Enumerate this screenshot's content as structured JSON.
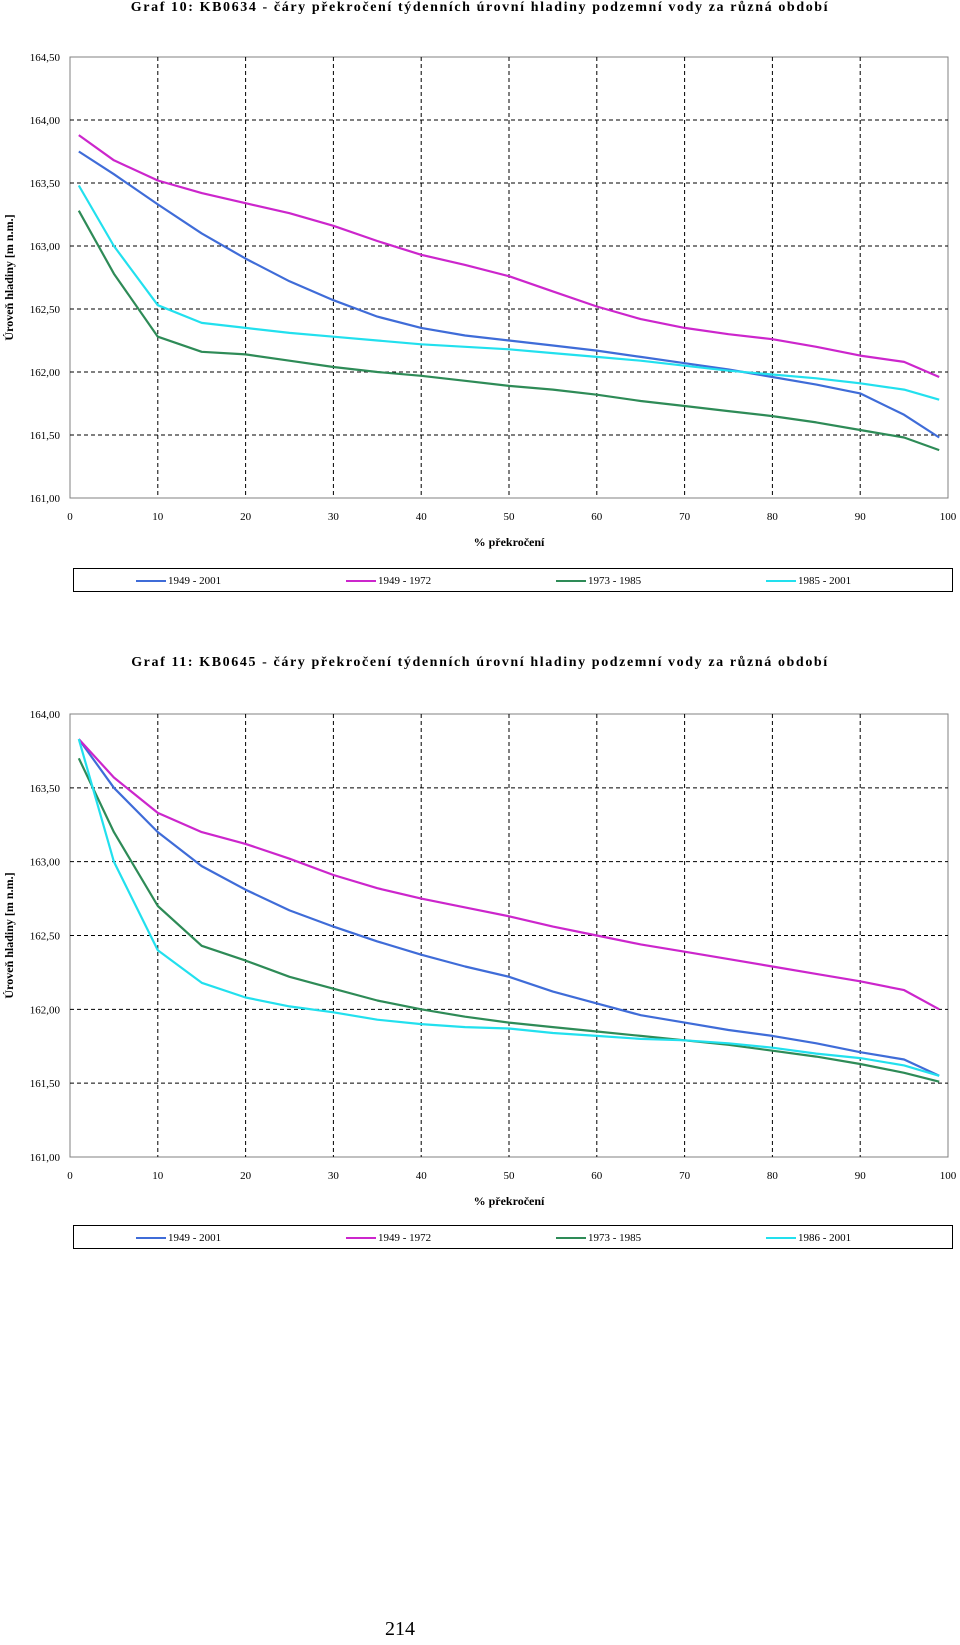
{
  "page_number": "214",
  "chart_data": [
    {
      "type": "line",
      "title": "Graf 10: KB0634 - čáry překročení týdenních úrovní hladiny podzemní vody za různá období",
      "xlabel": "% překročení",
      "ylabel": "Úroveň hladiny [m n.m.]",
      "xlim": [
        0,
        100
      ],
      "ylim": [
        161.0,
        164.5
      ],
      "x_ticks": [
        "0",
        "10",
        "20",
        "30",
        "40",
        "50",
        "60",
        "70",
        "80",
        "90",
        "100"
      ],
      "y_ticks": [
        "161,00",
        "161,50",
        "162,00",
        "162,50",
        "163,00",
        "163,50",
        "164,00",
        "164,50"
      ],
      "grid": true,
      "legend_position": "bottom",
      "x": [
        1,
        5,
        10,
        15,
        20,
        25,
        30,
        35,
        40,
        45,
        50,
        55,
        60,
        65,
        70,
        75,
        80,
        85,
        90,
        95,
        99
      ],
      "series": [
        {
          "name": "1949 - 2001",
          "color": "#3F6CD8",
          "values": [
            163.75,
            163.57,
            163.33,
            163.1,
            162.9,
            162.72,
            162.57,
            162.44,
            162.35,
            162.29,
            162.25,
            162.21,
            162.17,
            162.12,
            162.07,
            162.02,
            161.96,
            161.9,
            161.83,
            161.66,
            161.48
          ]
        },
        {
          "name": "1949 - 1972",
          "color": "#CC26CC",
          "values": [
            163.88,
            163.68,
            163.52,
            163.42,
            163.34,
            163.26,
            163.16,
            163.04,
            162.93,
            162.85,
            162.76,
            162.64,
            162.52,
            162.42,
            162.35,
            162.3,
            162.26,
            162.2,
            162.13,
            162.08,
            161.96
          ]
        },
        {
          "name": "1973 - 1985",
          "color": "#2E8B57",
          "values": [
            163.28,
            162.78,
            162.28,
            162.16,
            162.14,
            162.09,
            162.04,
            162.0,
            161.97,
            161.93,
            161.89,
            161.86,
            161.82,
            161.77,
            161.73,
            161.69,
            161.65,
            161.6,
            161.54,
            161.48,
            161.38
          ]
        },
        {
          "name": "1985 - 2001",
          "color": "#22E0EE",
          "values": [
            163.48,
            163.0,
            162.53,
            162.39,
            162.35,
            162.31,
            162.28,
            162.25,
            162.22,
            162.2,
            162.18,
            162.15,
            162.12,
            162.09,
            162.05,
            162.01,
            161.98,
            161.95,
            161.91,
            161.86,
            161.78
          ]
        }
      ]
    },
    {
      "type": "line",
      "title": "Graf 11: KB0645 - čáry překročení týdenních úrovní hladiny podzemní vody za různá období",
      "xlabel": "% překročení",
      "ylabel": "Úroveň hladiny [m n.m.]",
      "xlim": [
        0,
        100
      ],
      "ylim": [
        161.0,
        164.0
      ],
      "x_ticks": [
        "0",
        "10",
        "20",
        "30",
        "40",
        "50",
        "60",
        "70",
        "80",
        "90",
        "100"
      ],
      "y_ticks": [
        "161,00",
        "161,50",
        "162,00",
        "162,50",
        "163,00",
        "163,50",
        "164,00"
      ],
      "grid": true,
      "legend_position": "bottom",
      "x": [
        1,
        5,
        10,
        15,
        20,
        25,
        30,
        35,
        40,
        45,
        50,
        55,
        60,
        65,
        70,
        75,
        80,
        85,
        90,
        95,
        99
      ],
      "series": [
        {
          "name": "1949 - 2001",
          "color": "#3F6CD8",
          "values": [
            163.83,
            163.5,
            163.2,
            162.97,
            162.81,
            162.67,
            162.56,
            162.46,
            162.37,
            162.29,
            162.22,
            162.12,
            162.04,
            161.96,
            161.91,
            161.86,
            161.82,
            161.77,
            161.71,
            161.66,
            161.55
          ]
        },
        {
          "name": "1949 - 1972",
          "color": "#CC26CC",
          "values": [
            163.83,
            163.57,
            163.33,
            163.2,
            163.12,
            163.02,
            162.91,
            162.82,
            162.75,
            162.69,
            162.63,
            162.56,
            162.5,
            162.44,
            162.39,
            162.34,
            162.29,
            162.24,
            162.19,
            162.13,
            162.0
          ]
        },
        {
          "name": "1973 - 1985",
          "color": "#2E8B57",
          "values": [
            163.7,
            163.2,
            162.7,
            162.43,
            162.33,
            162.22,
            162.14,
            162.06,
            162.0,
            161.95,
            161.91,
            161.88,
            161.85,
            161.82,
            161.79,
            161.76,
            161.72,
            161.68,
            161.63,
            161.57,
            161.51
          ]
        },
        {
          "name": "1986 - 2001",
          "color": "#22E0EE",
          "values": [
            163.83,
            163.0,
            162.4,
            162.18,
            162.08,
            162.02,
            161.98,
            161.93,
            161.9,
            161.88,
            161.87,
            161.84,
            161.82,
            161.8,
            161.79,
            161.77,
            161.74,
            161.7,
            161.67,
            161.62,
            161.55
          ]
        }
      ]
    }
  ]
}
